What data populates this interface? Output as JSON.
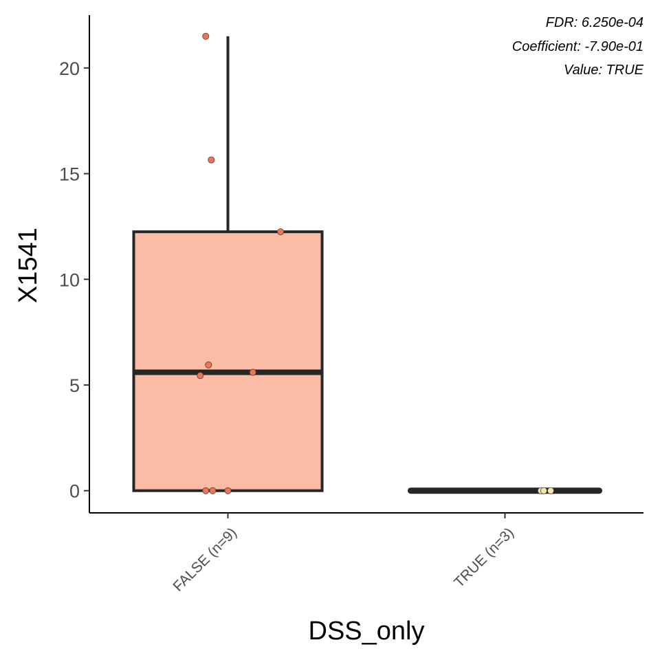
{
  "chart_data": {
    "type": "box",
    "xlabel": "DSS_only",
    "ylabel": "X1541",
    "ylim": [
      -1.05,
      22.5
    ],
    "yticks": [
      0,
      5,
      10,
      15,
      20
    ],
    "categories": [
      "FALSE (n=9)",
      "TRUE (n=3)"
    ],
    "boxes": [
      {
        "category": "FALSE (n=9)",
        "min": 0,
        "q1": 0,
        "median": 5.6,
        "q3": 12.25,
        "max": 21.5,
        "fill": "#fbbca6",
        "point_color": "#e8775a",
        "points": [
          {
            "x_jitter": -0.08,
            "y": 21.5
          },
          {
            "x_jitter": -0.06,
            "y": 15.65
          },
          {
            "x_jitter": 0.19,
            "y": 12.25
          },
          {
            "x_jitter": -0.07,
            "y": 5.95
          },
          {
            "x_jitter": -0.1,
            "y": 5.45
          },
          {
            "x_jitter": 0.09,
            "y": 5.6
          },
          {
            "x_jitter": -0.08,
            "y": 0
          },
          {
            "x_jitter": -0.055,
            "y": 0
          },
          {
            "x_jitter": 0.0,
            "y": 0
          }
        ]
      },
      {
        "category": "TRUE (n=3)",
        "min": 0,
        "q1": 0,
        "median": 0,
        "q3": 0,
        "max": 0,
        "fill": "#f7f2c2",
        "point_color": "#ecebad",
        "points": [
          {
            "x_jitter": 0.13,
            "y": 0
          },
          {
            "x_jitter": 0.14,
            "y": 0
          },
          {
            "x_jitter": 0.165,
            "y": 0
          }
        ]
      }
    ],
    "annotations": [
      "FDR: 6.250e-04",
      "Coefficient: -7.90e-01",
      "Value: TRUE"
    ],
    "grid": false,
    "legend": "none"
  }
}
